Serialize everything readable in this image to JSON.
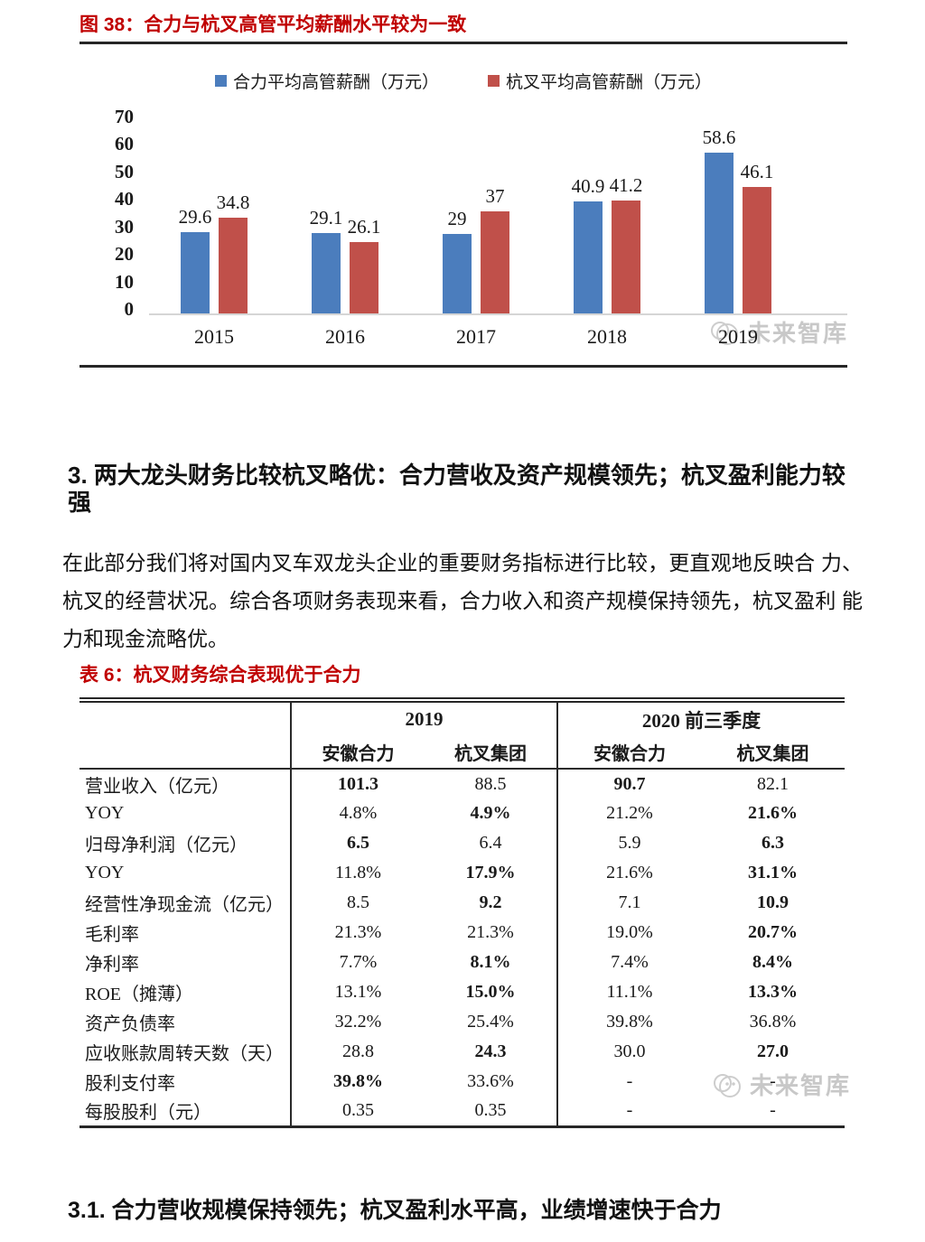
{
  "figure": {
    "title": "图 38：合力与杭叉高管平均薪酬水平较为一致",
    "watermark": "未来智库"
  },
  "chart_data": {
    "type": "bar",
    "title": "合力与杭叉高管平均薪酬水平较为一致",
    "categories": [
      "2015",
      "2016",
      "2017",
      "2018",
      "2019"
    ],
    "series": [
      {
        "name": "合力平均高管薪酬（万元）",
        "color": "#4b7dbd",
        "values": [
          29.6,
          29.1,
          29,
          40.9,
          58.6
        ],
        "labels": [
          "29.6",
          "29.1",
          "29",
          "40.9",
          "58.6"
        ]
      },
      {
        "name": "杭叉平均高管薪酬（万元）",
        "color": "#c0504a",
        "values": [
          34.8,
          26.1,
          37,
          41.2,
          46.1
        ],
        "labels": [
          "34.8",
          "26.1",
          "37",
          "41.2",
          "46.1"
        ]
      }
    ],
    "xlabel": "",
    "ylabel": "",
    "ylim": [
      0,
      70
    ],
    "yticks": [
      0,
      10,
      20,
      30,
      40,
      50,
      60,
      70
    ],
    "grid": false,
    "legend_position": "top"
  },
  "section": {
    "heading": "3. 两大龙头财务比较杭叉略优：合力营收及资产规模领先；杭叉盈利能力较强",
    "paragraph": "在此部分我们将对国内叉车双龙头企业的重要财务指标进行比较，更直观地反映合 力、杭叉的经营状况。综合各项财务表现来看，合力收入和资产规模保持领先，杭叉盈利 能力和现金流略优。"
  },
  "table": {
    "title": "表 6：杭叉财务综合表现优于合力",
    "col_groups": [
      "2019",
      "2020 前三季度"
    ],
    "sub_headers": [
      "安徽合力",
      "杭叉集团",
      "安徽合力",
      "杭叉集团"
    ],
    "rows": [
      {
        "label": "营业收入（亿元）",
        "values": [
          "101.3",
          "88.5",
          "90.7",
          "82.1"
        ],
        "bold": [
          true,
          false,
          true,
          false
        ]
      },
      {
        "label": "YOY",
        "values": [
          "4.8%",
          "4.9%",
          "21.2%",
          "21.6%"
        ],
        "bold": [
          false,
          true,
          false,
          true
        ]
      },
      {
        "label": "归母净利润（亿元）",
        "values": [
          "6.5",
          "6.4",
          "5.9",
          "6.3"
        ],
        "bold": [
          true,
          false,
          false,
          true
        ]
      },
      {
        "label": "YOY",
        "values": [
          "11.8%",
          "17.9%",
          "21.6%",
          "31.1%"
        ],
        "bold": [
          false,
          true,
          false,
          true
        ]
      },
      {
        "label": "经营性净现金流（亿元）",
        "values": [
          "8.5",
          "9.2",
          "7.1",
          "10.9"
        ],
        "bold": [
          false,
          true,
          false,
          true
        ]
      },
      {
        "label": "毛利率",
        "values": [
          "21.3%",
          "21.3%",
          "19.0%",
          "20.7%"
        ],
        "bold": [
          false,
          false,
          false,
          true
        ]
      },
      {
        "label": "净利率",
        "values": [
          "7.7%",
          "8.1%",
          "7.4%",
          "8.4%"
        ],
        "bold": [
          false,
          true,
          false,
          true
        ]
      },
      {
        "label": "ROE（摊薄）",
        "values": [
          "13.1%",
          "15.0%",
          "11.1%",
          "13.3%"
        ],
        "bold": [
          false,
          true,
          false,
          true
        ]
      },
      {
        "label": "资产负债率",
        "values": [
          "32.2%",
          "25.4%",
          "39.8%",
          "36.8%"
        ],
        "bold": [
          false,
          false,
          false,
          false
        ]
      },
      {
        "label": "应收账款周转天数（天）",
        "values": [
          "28.8",
          "24.3",
          "30.0",
          "27.0"
        ],
        "bold": [
          false,
          true,
          false,
          true
        ]
      },
      {
        "label": "股利支付率",
        "values": [
          "39.8%",
          "33.6%",
          "-",
          "-"
        ],
        "bold": [
          true,
          false,
          false,
          false
        ]
      },
      {
        "label": "每股股利（元）",
        "values": [
          "0.35",
          "0.35",
          "-",
          "-"
        ],
        "bold": [
          false,
          false,
          false,
          false
        ]
      }
    ],
    "watermark": "未来智库"
  },
  "subsection": {
    "heading": "3.1. 合力营收规模保持领先；杭叉盈利水平高，业绩增速快于合力"
  },
  "colors": {
    "title_red": "#c00000",
    "series_blue": "#4b7dbd",
    "series_red": "#c0504a",
    "watermark_gray": "#a8a8a8"
  }
}
